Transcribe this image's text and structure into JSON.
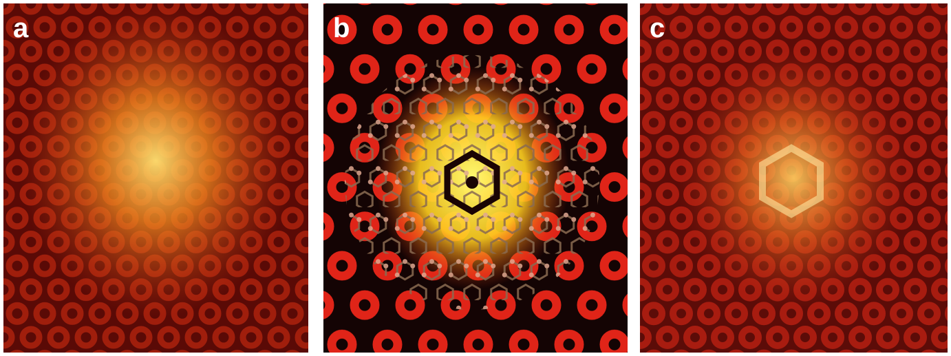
{
  "panels": [
    {
      "label": "a"
    },
    {
      "label": "b"
    },
    {
      "label": "c"
    }
  ]
}
